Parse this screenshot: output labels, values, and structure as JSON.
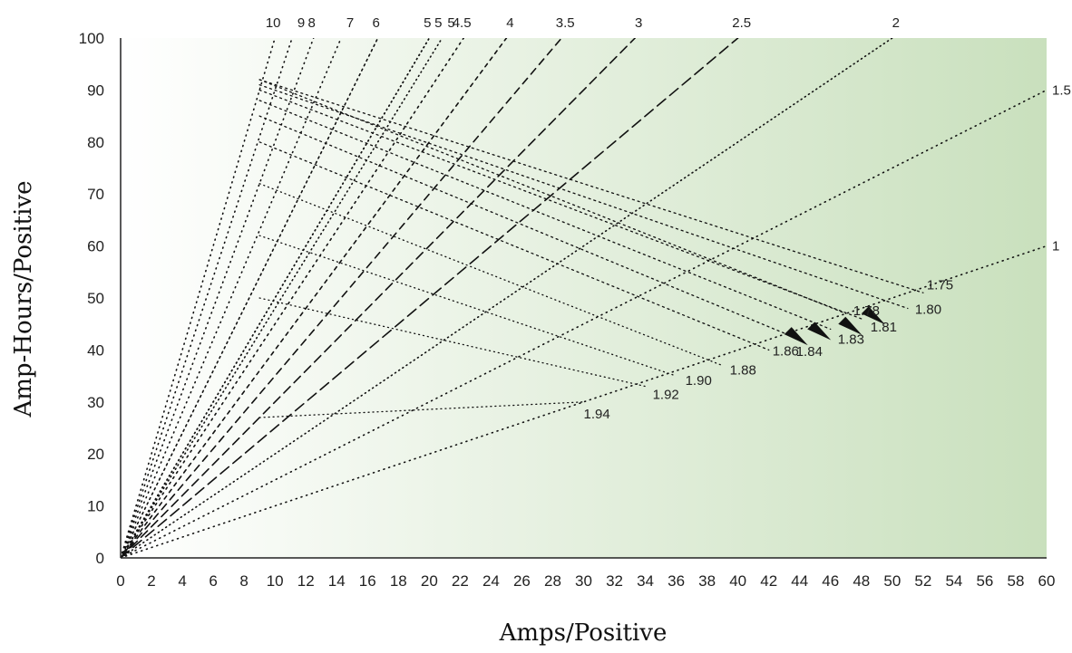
{
  "chart_data": {
    "type": "line",
    "title": "",
    "xlabel": "Amps/Positive",
    "ylabel": "Amp-Hours/Positive",
    "xlim": [
      0,
      60
    ],
    "ylim": [
      0,
      100
    ],
    "x_ticks": [
      0,
      2,
      4,
      6,
      8,
      10,
      12,
      14,
      16,
      18,
      20,
      22,
      24,
      26,
      28,
      30,
      32,
      34,
      36,
      38,
      40,
      42,
      44,
      46,
      48,
      50,
      52,
      54,
      56,
      58,
      60
    ],
    "y_ticks": [
      0,
      10,
      20,
      30,
      40,
      50,
      60,
      70,
      80,
      90,
      100
    ],
    "grid": false,
    "background": {
      "gradient_from": "#ffffff",
      "gradient_to": "#c9e0bd"
    },
    "rate_lines": [
      {
        "label": "10",
        "hours": 10,
        "top": "top"
      },
      {
        "label": "9",
        "hours": 9,
        "top": "top"
      },
      {
        "label": "8",
        "hours": 8,
        "top": "top"
      },
      {
        "label": "7",
        "hours": 7,
        "top": "top"
      },
      {
        "label": "6",
        "hours": 6,
        "top": "top"
      },
      {
        "label": "5",
        "hours": 5,
        "top": "top"
      },
      {
        "label": "5",
        "hours": 5,
        "top": "top"
      },
      {
        "label": "5",
        "hours": 4.8,
        "top": "top"
      },
      {
        "label": "4.5",
        "hours": 4.5,
        "top": "top"
      },
      {
        "label": "4",
        "hours": 4,
        "top": "top"
      },
      {
        "label": "3.5",
        "hours": 3.5,
        "top": "top"
      },
      {
        "label": "3",
        "hours": 3,
        "top": "top"
      },
      {
        "label": "2.5",
        "hours": 2.5,
        "top": "top"
      },
      {
        "label": "2",
        "hours": 2,
        "top": "top"
      },
      {
        "label": "1.5",
        "hours": 1.5,
        "top": "right"
      },
      {
        "label": "1",
        "hours": 1,
        "top": "right"
      }
    ],
    "voltage_lines": [
      {
        "label": "1.94",
        "points": [
          [
            9,
            27
          ],
          [
            30,
            30
          ]
        ]
      },
      {
        "label": "1.92",
        "points": [
          [
            9,
            50
          ],
          [
            34,
            33
          ]
        ]
      },
      {
        "label": "1.90",
        "points": [
          [
            9,
            62
          ],
          [
            36,
            35
          ]
        ]
      },
      {
        "label": "1.88",
        "points": [
          [
            9,
            72
          ],
          [
            39,
            37
          ]
        ]
      },
      {
        "label": "1.86",
        "points": [
          [
            9,
            80
          ],
          [
            42,
            40
          ]
        ]
      },
      {
        "label": "1.84",
        "points": [
          [
            9,
            85
          ],
          [
            44,
            42
          ]
        ]
      },
      {
        "label": "1.83",
        "points": [
          [
            9,
            88
          ],
          [
            46,
            44
          ]
        ]
      },
      {
        "label": "1.81",
        "points": [
          [
            9,
            90
          ],
          [
            48,
            46
          ]
        ]
      },
      {
        "label": "1.80",
        "points": [
          [
            9,
            91
          ],
          [
            51,
            48
          ]
        ]
      },
      {
        "label": "1.78",
        "points": [
          [
            9,
            92
          ],
          [
            47,
            47
          ]
        ]
      },
      {
        "label": "1.75",
        "points": [
          [
            9,
            92
          ],
          [
            52,
            51
          ]
        ]
      }
    ],
    "voltage_label_texts": [
      "1.94",
      "1.92",
      "1.90",
      "1.88",
      "1.86",
      "1.84",
      "1.83",
      "1.81",
      "1.80",
      "1.78",
      "1.75"
    ]
  }
}
